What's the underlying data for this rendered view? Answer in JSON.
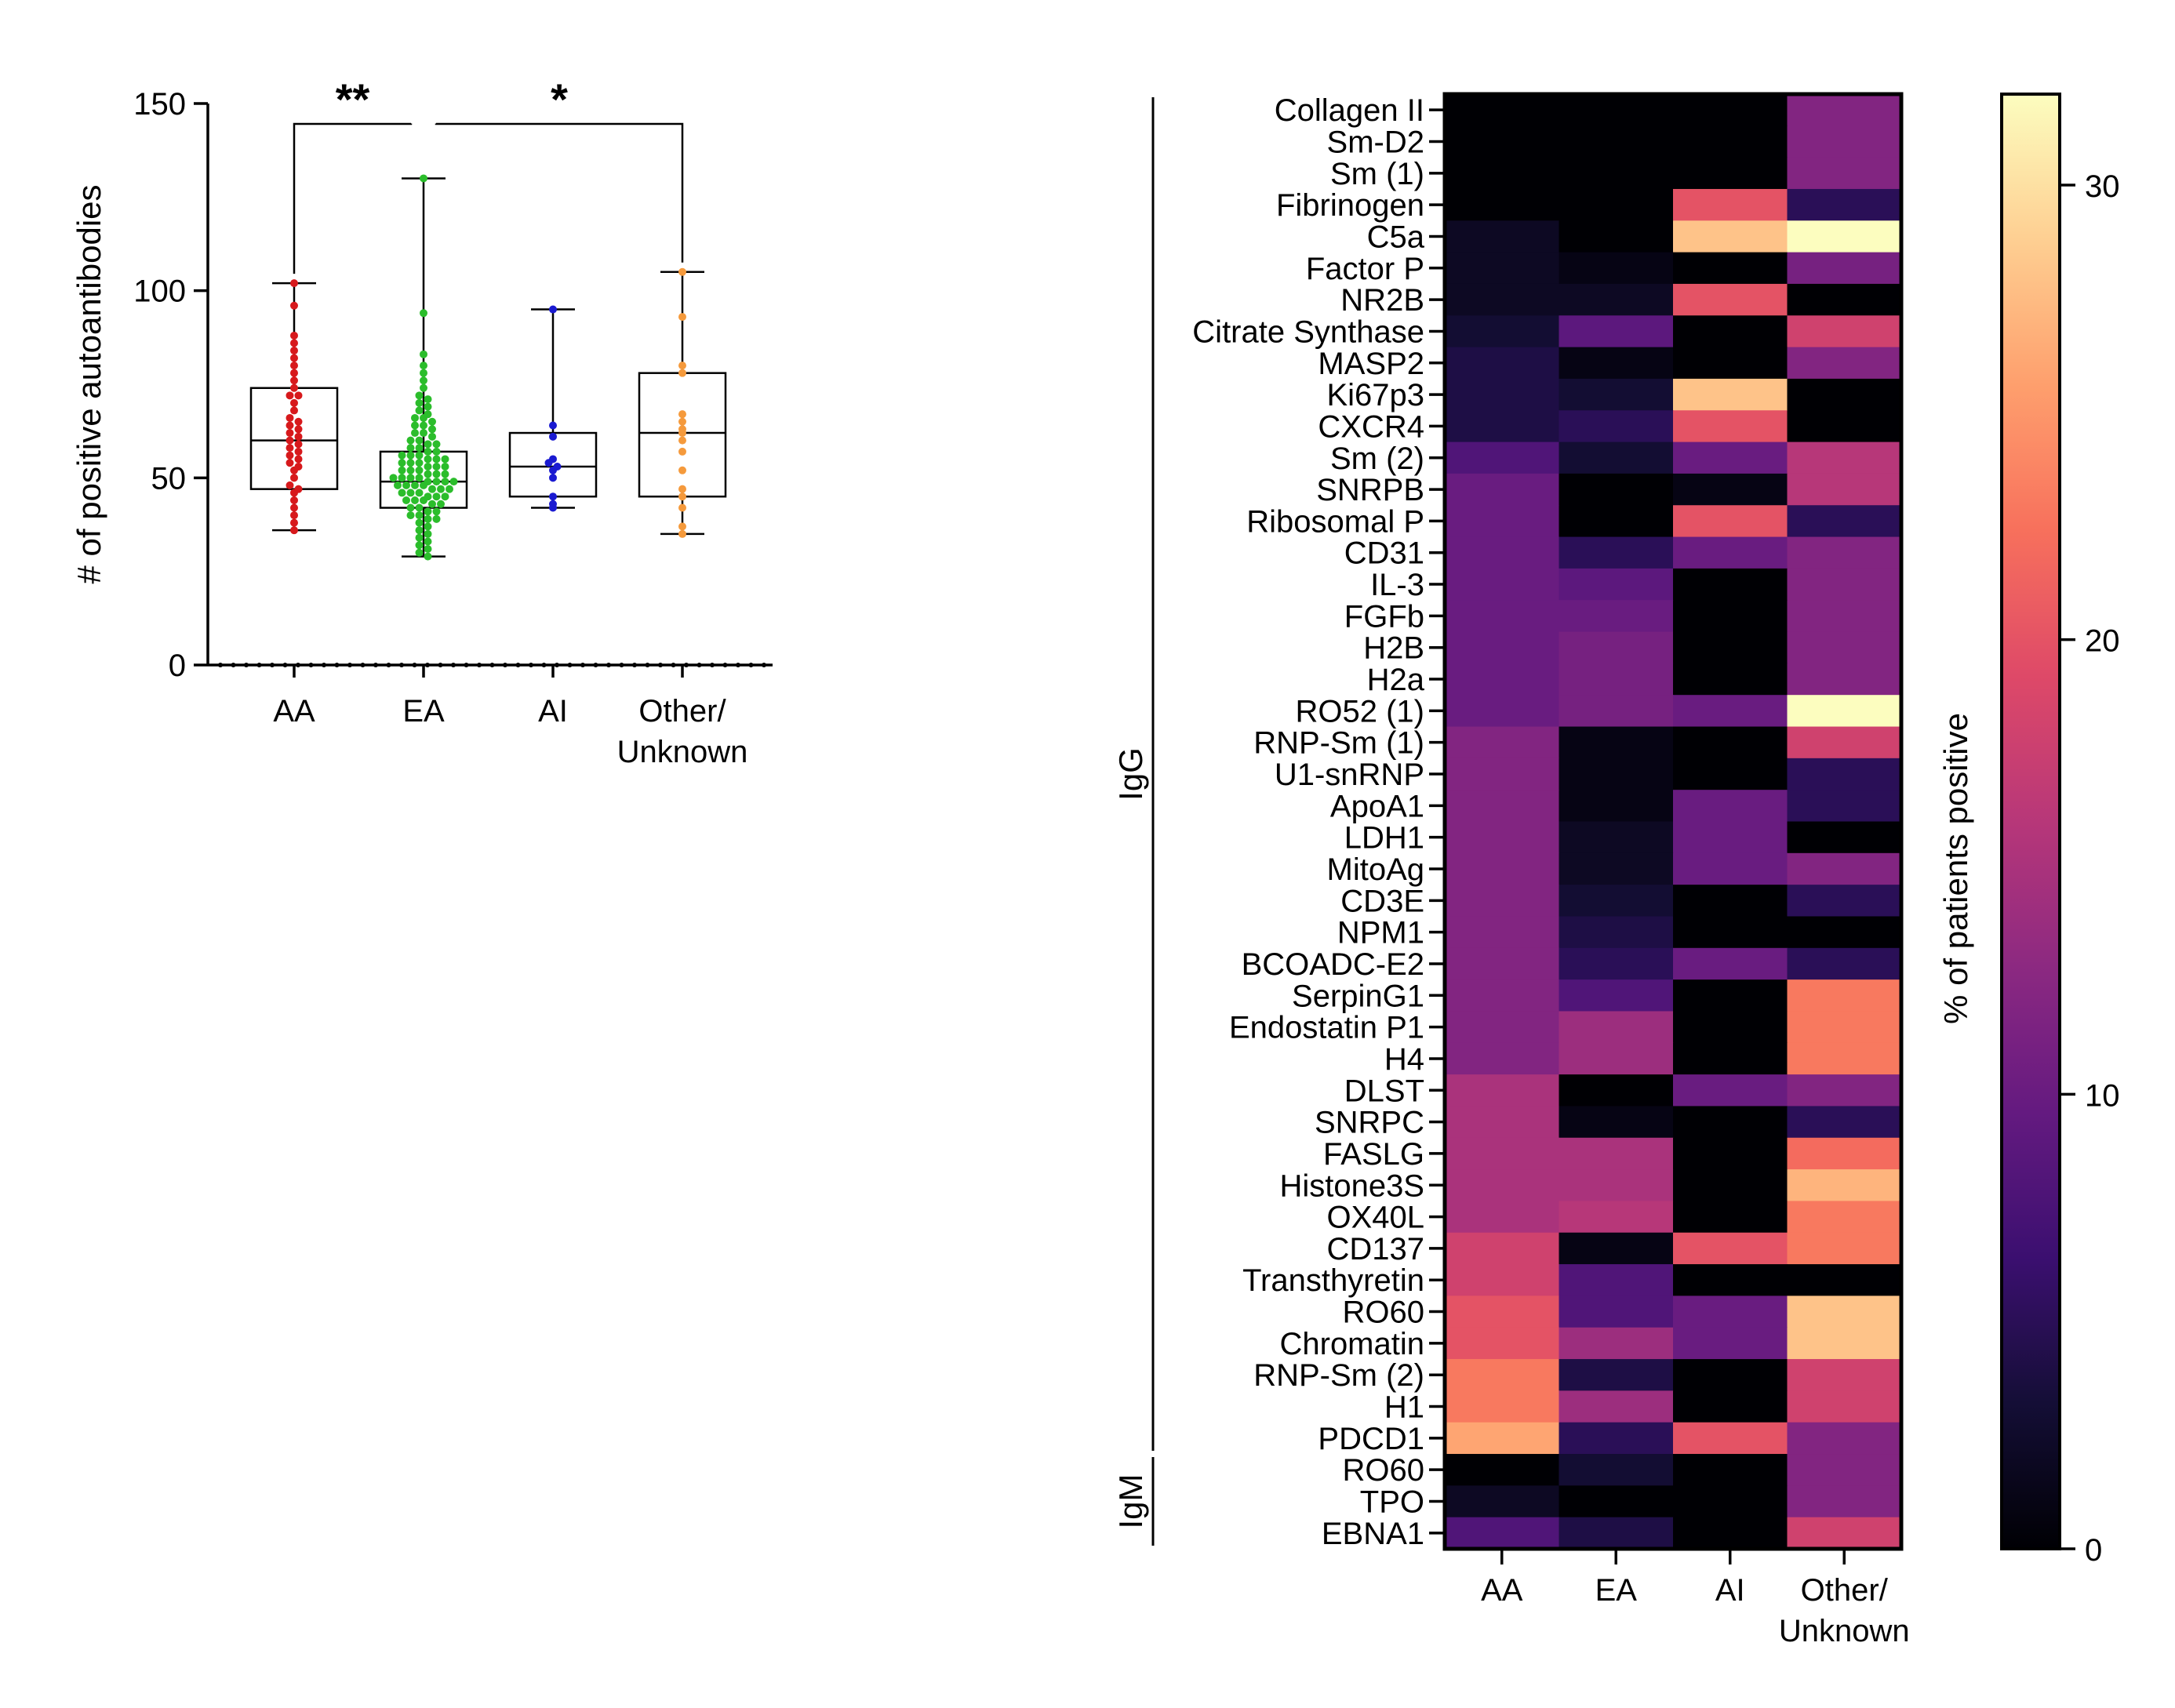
{
  "chart_data": [
    {
      "type": "box",
      "ylabel": "# of positive autoantibodies",
      "ylim": [
        0,
        150
      ],
      "yticks": [
        0,
        50,
        100,
        150
      ],
      "categories": [
        "AA",
        "EA",
        "AI",
        "Other/\nUnknown"
      ],
      "category_labels": [
        [
          "AA"
        ],
        [
          "EA"
        ],
        [
          "AI"
        ],
        [
          "Other/",
          "Unknown"
        ]
      ],
      "series": [
        {
          "category": "AA",
          "color": "#d7191c",
          "min": 36,
          "q1": 47,
          "median": 60,
          "q3": 74,
          "max": 102
        },
        {
          "category": "EA",
          "color": "#2bbd2b",
          "min": 29,
          "q1": 42,
          "median": 49,
          "q3": 57,
          "max": 130
        },
        {
          "category": "AI",
          "color": "#1a1ad1",
          "min": 42,
          "q1": 45,
          "median": 53,
          "q3": 62,
          "max": 95
        },
        {
          "category": "Other/Unknown",
          "color": "#f59a3c",
          "min": 35,
          "q1": 45,
          "median": 62,
          "q3": 78,
          "max": 105
        }
      ],
      "points": {
        "AA": [
          102,
          96,
          88,
          86,
          84,
          82,
          80,
          78,
          76,
          74,
          72,
          72,
          70,
          68,
          66,
          65,
          64,
          63,
          62,
          61,
          60,
          59,
          58,
          57,
          56,
          55,
          54,
          53,
          52,
          50,
          48,
          47,
          46,
          44,
          42,
          40,
          38,
          36
        ],
        "EA": [
          130,
          94,
          83,
          80,
          78,
          76,
          74,
          72,
          71,
          70,
          69,
          68,
          67,
          66,
          66,
          65,
          64,
          64,
          63,
          62,
          62,
          61,
          60,
          60,
          59,
          59,
          58,
          58,
          57,
          57,
          56,
          56,
          56,
          55,
          55,
          55,
          54,
          54,
          54,
          53,
          53,
          53,
          52,
          52,
          52,
          51,
          51,
          51,
          50,
          50,
          50,
          50,
          49,
          49,
          49,
          49,
          48,
          48,
          48,
          48,
          47,
          47,
          47,
          46,
          46,
          46,
          45,
          45,
          45,
          44,
          44,
          44,
          43,
          43,
          42,
          42,
          41,
          41,
          40,
          40,
          39,
          39,
          38,
          37,
          36,
          35,
          34,
          33,
          32,
          31,
          30,
          29
        ],
        "AI": [
          95,
          64,
          61,
          55,
          54,
          53,
          52,
          50,
          45,
          43,
          42
        ],
        "Other/Unknown": [
          105,
          93,
          80,
          78,
          67,
          65,
          63,
          62,
          60,
          57,
          52,
          47,
          45,
          42,
          37,
          35
        ]
      },
      "significance": [
        {
          "from": "AA",
          "to": "EA",
          "label": "**"
        },
        {
          "from": "EA",
          "to": "Other/Unknown",
          "label": "*"
        }
      ]
    },
    {
      "type": "heatmap",
      "columns": [
        "AA",
        "EA",
        "AI",
        "Other/\nUnknown"
      ],
      "column_labels": [
        [
          "AA"
        ],
        [
          "EA"
        ],
        [
          "AI"
        ],
        [
          "Other/",
          "Unknown"
        ]
      ],
      "rows": [
        "Collagen II",
        "Sm-D2",
        "Sm (1)",
        "Fibrinogen",
        "C5a",
        "Factor P",
        "NR2B",
        "Citrate Synthase",
        "MASP2",
        "Ki67p3",
        "CXCR4",
        "Sm (2)",
        "SNRPB",
        "Ribosomal P",
        "CD31",
        "IL-3",
        "FGFb",
        "H2B",
        "H2a",
        "RO52 (1)",
        "RNP-Sm (1)",
        "U1-snRNP",
        "ApoA1",
        "LDH1",
        "MitoAg",
        "CD3E",
        "NPM1",
        "BCOADC-E2",
        "SerpinG1",
        "Endostatin P1",
        "H4",
        "DLST",
        "SNRPC",
        "FASLG",
        "Histone3S",
        "OX40L",
        "CD137",
        "Transthyretin",
        "RO60",
        "Chromatin",
        "RNP-Sm (2)",
        "H1",
        "PDCD1",
        "RO60",
        "TPO",
        "EBNA1"
      ],
      "values": [
        [
          0,
          0,
          0,
          12
        ],
        [
          0,
          0,
          0,
          12
        ],
        [
          0,
          0,
          0,
          12
        ],
        [
          0,
          0,
          20,
          5
        ],
        [
          2,
          0,
          28,
          32
        ],
        [
          2,
          1,
          0,
          11
        ],
        [
          2,
          2,
          20,
          0
        ],
        [
          3,
          9,
          0,
          18
        ],
        [
          4,
          1,
          0,
          12
        ],
        [
          4,
          3,
          28,
          0
        ],
        [
          4,
          5,
          20,
          0
        ],
        [
          8,
          3,
          10,
          16
        ],
        [
          10,
          0,
          1,
          16
        ],
        [
          10,
          0,
          20,
          5
        ],
        [
          10,
          5,
          10,
          12
        ],
        [
          10,
          9,
          0,
          12
        ],
        [
          10,
          10,
          0,
          12
        ],
        [
          10,
          11,
          0,
          12
        ],
        [
          10,
          11,
          0,
          12
        ],
        [
          10,
          11,
          10,
          32
        ],
        [
          12,
          1,
          0,
          18
        ],
        [
          12,
          1,
          0,
          5
        ],
        [
          12,
          1,
          10,
          5
        ],
        [
          12,
          2,
          10,
          0
        ],
        [
          12,
          2,
          10,
          12
        ],
        [
          12,
          3,
          0,
          5
        ],
        [
          12,
          4,
          0,
          0
        ],
        [
          12,
          5,
          10,
          5
        ],
        [
          12,
          8,
          0,
          23
        ],
        [
          12,
          14,
          0,
          23
        ],
        [
          12,
          14,
          0,
          23
        ],
        [
          15,
          0,
          10,
          12
        ],
        [
          15,
          1,
          0,
          5
        ],
        [
          15,
          15,
          0,
          22
        ],
        [
          15,
          15,
          0,
          27
        ],
        [
          15,
          16,
          0,
          23
        ],
        [
          18,
          1,
          20,
          23
        ],
        [
          18,
          8,
          0,
          0
        ],
        [
          20,
          8,
          10,
          28
        ],
        [
          20,
          14,
          10,
          28
        ],
        [
          23,
          4,
          0,
          18
        ],
        [
          23,
          14,
          0,
          18
        ],
        [
          26,
          5,
          20,
          12
        ],
        [
          0,
          3,
          0,
          12
        ],
        [
          2,
          0,
          0,
          12
        ],
        [
          8,
          4,
          0,
          18
        ]
      ],
      "groups": [
        {
          "label": "IgG",
          "from_row": 0,
          "to_row": 42
        },
        {
          "label": "IgM",
          "from_row": 43,
          "to_row": 45
        }
      ],
      "colorbar": {
        "label": "% of patients positive",
        "range": [
          0,
          32
        ],
        "ticks": [
          0,
          10,
          20,
          30
        ],
        "colormap": "magma"
      }
    }
  ]
}
